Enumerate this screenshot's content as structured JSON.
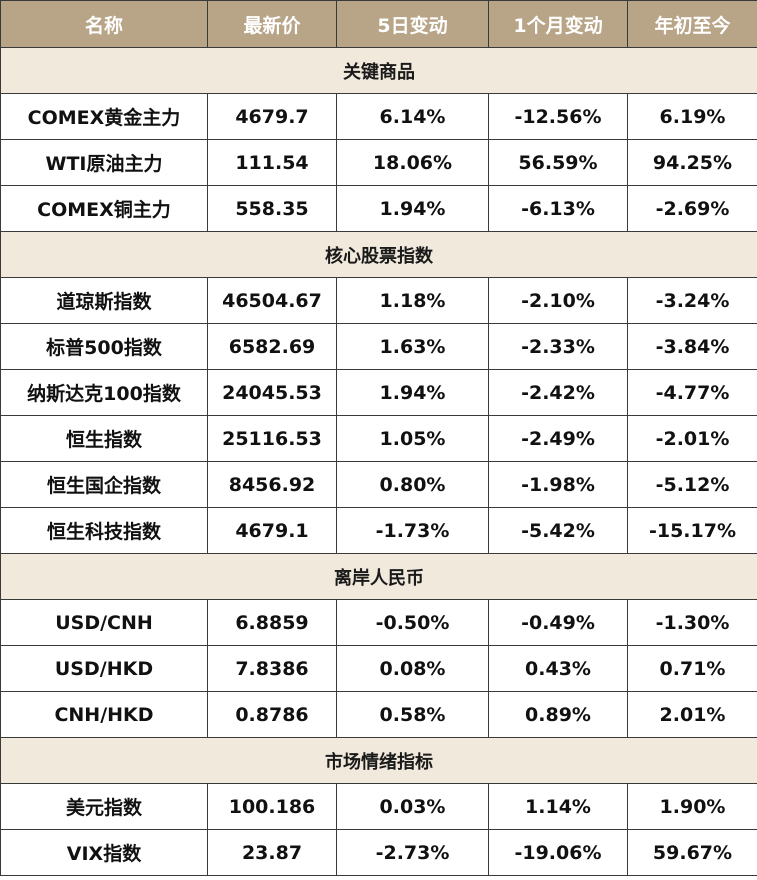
{
  "colors": {
    "header_bg": "#b8a487",
    "section_bg": "#f1e9dc",
    "up": "#21a04a",
    "down": "#e8221f"
  },
  "headers": [
    "名称",
    "最新价",
    "5日变动",
    "1个月变动",
    "年初至今"
  ],
  "sections": [
    {
      "title": "关键商品",
      "rows": [
        [
          "COMEX黄金主力",
          "4679.7",
          "6.14%",
          "-12.56%",
          "6.19%"
        ],
        [
          "WTI原油主力",
          "111.54",
          "18.06%",
          "56.59%",
          "94.25%"
        ],
        [
          "COMEX铜主力",
          "558.35",
          "1.94%",
          "-6.13%",
          "-2.69%"
        ]
      ]
    },
    {
      "title": "核心股票指数",
      "rows": [
        [
          "道琼斯指数",
          "46504.67",
          "1.18%",
          "-2.10%",
          "-3.24%"
        ],
        [
          "标普500指数",
          "6582.69",
          "1.63%",
          "-2.33%",
          "-3.84%"
        ],
        [
          "纳斯达克100指数",
          "24045.53",
          "1.94%",
          "-2.42%",
          "-4.77%"
        ],
        [
          "恒生指数",
          "25116.53",
          "1.05%",
          "-2.49%",
          "-2.01%"
        ],
        [
          "恒生国企指数",
          "8456.92",
          "0.80%",
          "-1.98%",
          "-5.12%"
        ],
        [
          "恒生科技指数",
          "4679.1",
          "-1.73%",
          "-5.42%",
          "-15.17%"
        ]
      ]
    },
    {
      "title": "离岸人民币",
      "rows": [
        [
          "USD/CNH",
          "6.8859",
          "-0.50%",
          "-0.49%",
          "-1.30%"
        ],
        [
          "USD/HKD",
          "7.8386",
          "0.08%",
          "0.43%",
          "0.71%"
        ],
        [
          "CNH/HKD",
          "0.8786",
          "0.58%",
          "0.89%",
          "2.01%"
        ]
      ]
    },
    {
      "title": "市场情绪指标",
      "rows": [
        [
          "美元指数",
          "100.186",
          "0.03%",
          "1.14%",
          "1.90%"
        ],
        [
          "VIX指数",
          "23.87",
          "-2.73%",
          "-19.06%",
          "59.67%"
        ]
      ]
    }
  ]
}
